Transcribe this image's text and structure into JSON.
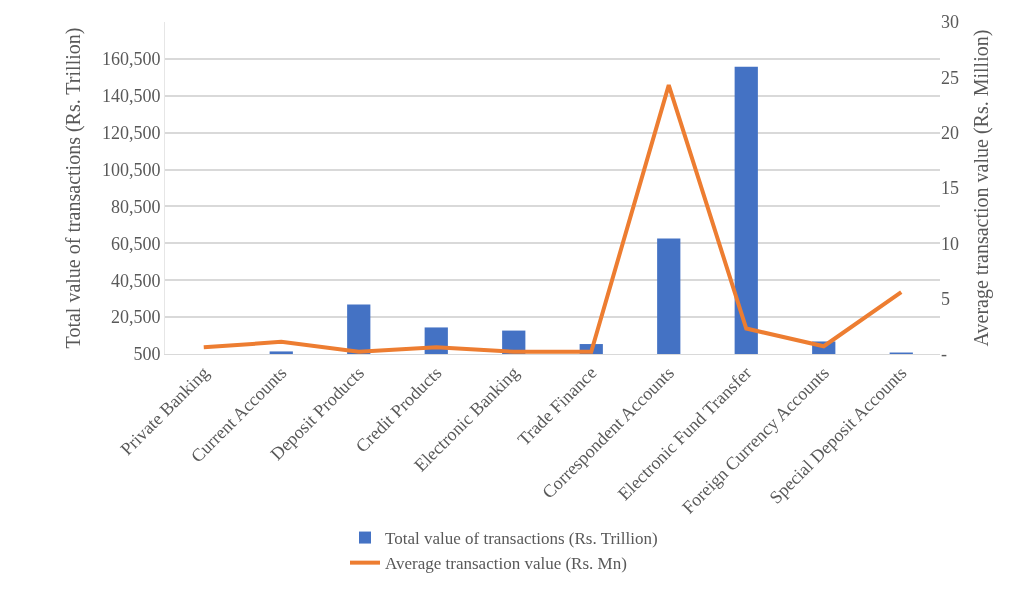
{
  "chart_data": {
    "type": "bar",
    "categories": [
      "Private Banking",
      "Current Accounts",
      "Deposit Products",
      "Credit Products",
      "Electronic Banking",
      "Trade Finance",
      "Correspondent Accounts",
      "Electronic Fund Transfer",
      "Foreign Currency Accounts",
      "Special Deposit Accounts"
    ],
    "ylabel": "Total value of transactions (Rs. Trillion)",
    "y2label": "Average transaction value (Rs. Million)",
    "series": [
      {
        "name": "Total value of transactions (Rs. Trillion)",
        "color": "#4472c4",
        "values": [
          null,
          1900,
          27300,
          14900,
          13200,
          5900,
          63100,
          156300,
          7300,
          1300
        ]
      },
      {
        "name": "Average transaction value (Rs. Mn)",
        "type": "line",
        "axis": "y2",
        "color": "#ed7d31",
        "values": [
          0.6,
          1.1,
          0.2,
          0.6,
          0.2,
          0.2,
          24.3,
          2.3,
          0.7,
          5.6
        ]
      }
    ],
    "ylim": [
      500,
      180500
    ],
    "yticks": [
      500,
      {
        "value": 20500,
        "label": "20,500"
      },
      {
        "value": 40500,
        "label": "40,500"
      },
      {
        "value": 60500,
        "label": "60,500"
      },
      {
        "value": 80500,
        "label": "80,500"
      },
      {
        "value": 100500,
        "label": "100,500"
      },
      {
        "value": 120500,
        "label": "120,500"
      },
      {
        "value": 140500,
        "label": "140,500"
      },
      {
        "value": 160500,
        "label": "160,500"
      }
    ],
    "y2lim": [
      0,
      30
    ],
    "y2ticks": [
      {
        "value": 0,
        "label": "-"
      },
      5,
      10,
      15,
      20,
      25,
      30
    ],
    "grid": "y",
    "legend": "bottom",
    "marker": "none",
    "line_style": "solid"
  }
}
